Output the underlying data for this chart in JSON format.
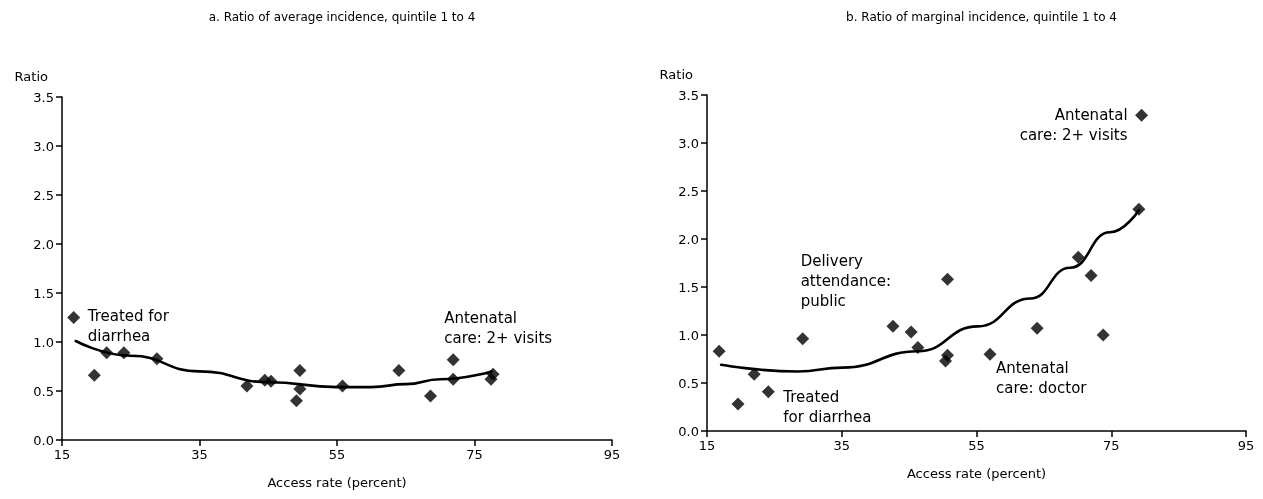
{
  "chart_data": [
    {
      "type": "scatter",
      "title": "a. Ratio of average incidence, quintile 1 to 4",
      "xlabel": "Access rate (percent)",
      "ylabel": "Ratio",
      "marker": "diamond",
      "xlim": [
        15,
        95
      ],
      "xticks": [
        15,
        35,
        55,
        75,
        95
      ],
      "ylim": [
        0,
        3.5
      ],
      "yticks": [
        {
          "value": 0,
          "label": "0.0"
        },
        0.5,
        {
          "value": 1,
          "label": "1.0"
        },
        1.5,
        {
          "value": 2,
          "label": "2.0"
        },
        2.5,
        {
          "value": 3,
          "label": "3.0"
        },
        3.5
      ],
      "series": [
        {
          "color": "#000000",
          "x": [
            16.7,
            19.7,
            21.5,
            24.0,
            28.8,
            41.9,
            44.5,
            45.4,
            49.6,
            49.6,
            49.1,
            55.8,
            64.0,
            68.6,
            71.9,
            71.9,
            77.4,
            77.7
          ],
          "values": [
            1.25,
            0.66,
            0.89,
            0.89,
            0.83,
            0.55,
            0.61,
            0.6,
            0.71,
            0.52,
            0.4,
            0.55,
            0.71,
            0.45,
            0.82,
            0.62,
            0.62,
            0.67
          ]
        },
        {
          "type": "line",
          "color": "#000000",
          "marker": "none",
          "line_style": "solid",
          "x": [
            17,
            25,
            35,
            45,
            55,
            60,
            65,
            70,
            77.5
          ],
          "values": [
            1.01,
            0.86,
            0.7,
            0.59,
            0.54,
            0.54,
            0.57,
            0.62,
            0.7
          ]
        }
      ],
      "annotations": [
        {
          "text": "Treated for\ndiarrhea",
          "x": 16.7,
          "y": 1.25
        },
        {
          "text": "Antenatal\ncare: 2+ visits",
          "x": 71.9,
          "y": 0.82
        }
      ]
    },
    {
      "type": "scatter",
      "title": "b. Ratio of marginal incidence, quintile 1 to 4",
      "xlabel": "Access rate (percent)",
      "ylabel": "Ratio",
      "marker": "diamond",
      "xlim": [
        15,
        95
      ],
      "xticks": [
        15,
        35,
        55,
        75,
        95
      ],
      "ylim": [
        0,
        3.5
      ],
      "yticks": [
        {
          "value": 0,
          "label": "0.0"
        },
        0.5,
        {
          "value": 1,
          "label": "1.0"
        },
        1.5,
        {
          "value": 2,
          "label": "2.0"
        },
        2.5,
        {
          "value": 3,
          "label": "3.0"
        },
        3.5
      ],
      "series": [
        {
          "color": "#000000",
          "x": [
            16.8,
            19.6,
            22.0,
            24.1,
            29.2,
            42.6,
            45.3,
            46.3,
            50.7,
            50.7,
            50.4,
            57.0,
            64.0,
            70.1,
            72.0,
            73.8,
            79.1,
            79.5
          ],
          "values": [
            0.83,
            0.28,
            0.59,
            0.41,
            0.96,
            1.09,
            1.03,
            0.87,
            1.58,
            0.79,
            0.73,
            0.8,
            1.07,
            1.81,
            1.62,
            1.0,
            2.31,
            3.29
          ]
        },
        {
          "type": "line",
          "color": "#000000",
          "marker": "none",
          "line_style": "solid",
          "x": [
            17.1,
            28.5,
            35.1,
            46.3,
            55.2,
            63.0,
            68.9,
            74.8,
            79.1
          ],
          "values": [
            0.69,
            0.62,
            0.66,
            0.83,
            1.09,
            1.38,
            1.7,
            2.07,
            2.3
          ]
        }
      ],
      "annotations": [
        {
          "text": "Antenatal\ncare: 2+ visits",
          "x": 79.5,
          "y": 3.29
        },
        {
          "text": "Delivery\nattendance:\npublic",
          "x": 29.2,
          "y": 0.96
        },
        {
          "text": "Treated\nfor diarrhea",
          "x": 24.1,
          "y": 0.41
        },
        {
          "text": "Antenatal\ncare: doctor",
          "x": 57.0,
          "y": 0.8
        }
      ]
    }
  ]
}
